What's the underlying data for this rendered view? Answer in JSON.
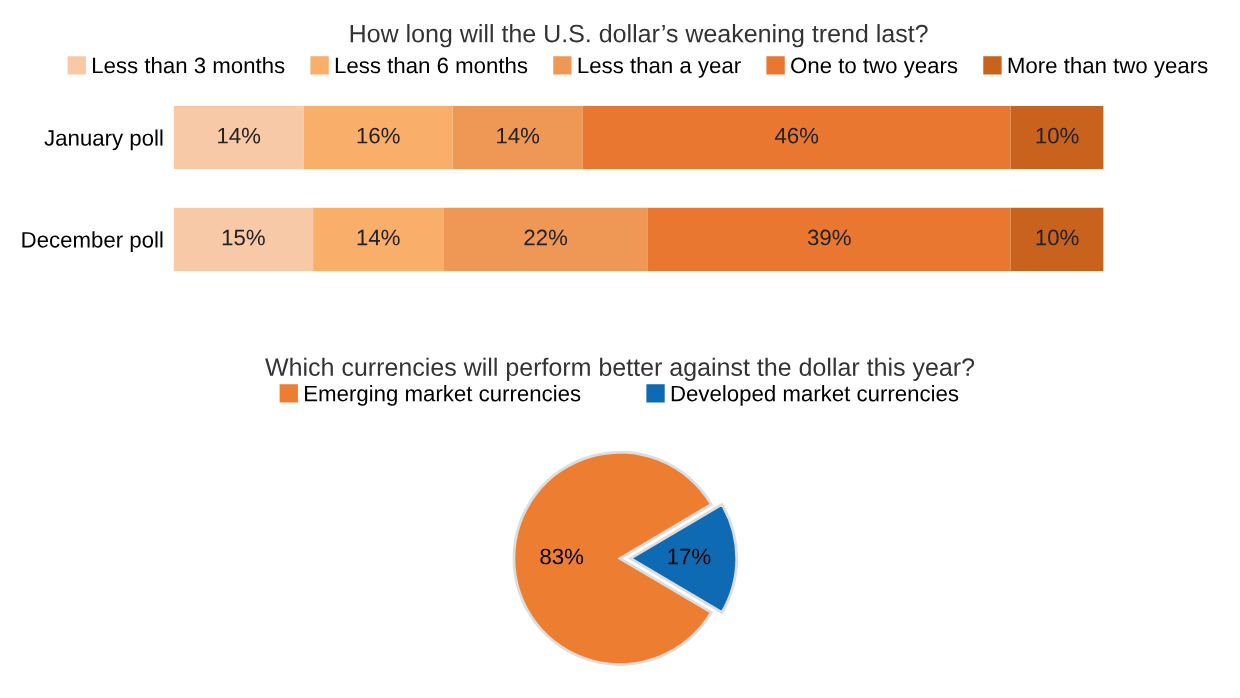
{
  "chart_data": [
    {
      "type": "bar",
      "orientation": "horizontal",
      "stacked": true,
      "title": "How long will the U.S. dollar’s weakening trend last?",
      "categories": [
        "January poll",
        "December poll"
      ],
      "legend": "top",
      "series": [
        {
          "name": "Less than 3 months",
          "color": "#f7c9a6",
          "values": [
            14,
            15
          ],
          "value_labels": [
            "14%",
            "15%"
          ]
        },
        {
          "name": "Less than 6 months",
          "color": "#f9ae6a",
          "values": [
            16,
            14
          ],
          "value_labels": [
            "16%",
            "14%"
          ]
        },
        {
          "name": "Less than a year",
          "color": "#ef9855",
          "values": [
            14,
            22
          ],
          "value_labels": [
            "14%",
            "22%"
          ]
        },
        {
          "name": "One to two years",
          "color": "#ea7730",
          "values": [
            46,
            39
          ],
          "value_labels": [
            "46%",
            "39%"
          ]
        },
        {
          "name": "More than two years",
          "color": "#c9621c",
          "values": [
            10,
            10
          ],
          "value_labels": [
            "10%",
            "10%"
          ]
        }
      ]
    },
    {
      "type": "pie",
      "title": "Which currencies will perform better against the dollar this year?",
      "categories": [
        "Emerging market currencies",
        "Developed market currencies"
      ],
      "values": [
        83,
        17
      ],
      "colors": [
        "#ed7d31",
        "#0f6ab4"
      ],
      "value_labels": [
        "83%",
        "17%"
      ],
      "legend": "top"
    }
  ]
}
